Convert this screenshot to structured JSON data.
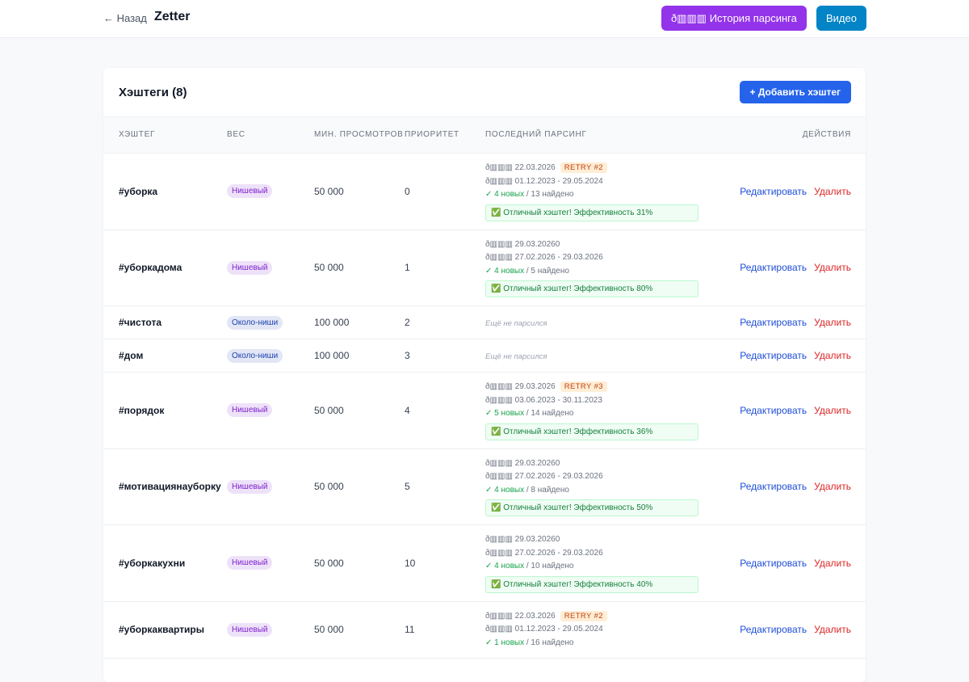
{
  "header": {
    "back": "← Назад",
    "title": "Zetter",
    "history_button": "ð▥▥▥ История парсинга",
    "video_button": "Видео"
  },
  "card": {
    "title": "Хэштеги (8)",
    "add_button": "+ Добавить хэштег"
  },
  "columns": [
    "ХЭШТЕГ",
    "ВЕС",
    "МИН. ПРОСМОТРОВ",
    "ПРИОРИТЕТ",
    "ПОСЛЕДНИЙ ПАРСИНГ",
    "ДЕЙСТВИЯ"
  ],
  "actions": {
    "edit": "Редактировать",
    "delete": "Удалить"
  },
  "rows": [
    {
      "tag": "#уборка",
      "weight": "Нишевый",
      "weight_color": "#7e22ce",
      "min_views": "50 000",
      "priority": "0",
      "parsing": {
        "date": "ð▥▥▥ 22.03.2026",
        "retry": "RETRY #2",
        "range": "ð▥▥▥ 01.12.2023 - 29.05.2024",
        "new": "✓ 4 новых",
        "found": "/ 13 найдено",
        "verdict": "✅ Отличный хэштег! Эффективность 31%"
      }
    },
    {
      "tag": "#уборкадома",
      "weight": "Нишевый",
      "weight_color": "#7e22ce",
      "min_views": "50 000",
      "priority": "1",
      "parsing": {
        "date": "ð▥▥▥ 29.03.20260",
        "range": "ð▥▥▥ 27.02.2026 - 29.03.2026",
        "new": "✓ 4 новых",
        "found": "/ 5 найдено",
        "verdict": "✅ Отличный хэштег! Эффективность 80%"
      }
    },
    {
      "tag": "#чистота",
      "weight": "Около-ниши",
      "weight_color": "#1e40af",
      "min_views": "100 000",
      "priority": "2",
      "parsing": {
        "status": "Ещё не парсился"
      }
    },
    {
      "tag": "#дом",
      "weight": "Около-ниши",
      "weight_color": "#1e40af",
      "min_views": "100 000",
      "priority": "3",
      "parsing": {
        "status": "Ещё не парсился"
      }
    },
    {
      "tag": "#порядок",
      "weight": "Нишевый",
      "weight_color": "#7e22ce",
      "min_views": "50 000",
      "priority": "4",
      "parsing": {
        "date": "ð▥▥▥ 29.03.2026",
        "retry": "RETRY #3",
        "range": "ð▥▥▥ 03.06.2023 - 30.11.2023",
        "new": "✓ 5 новых",
        "found": "/ 14 найдено",
        "verdict": "✅ Отличный хэштег! Эффективность 36%"
      }
    },
    {
      "tag": "#мотивациянауборку",
      "weight": "Нишевый",
      "weight_color": "#7e22ce",
      "min_views": "50 000",
      "priority": "5",
      "parsing": {
        "date": "ð▥▥▥ 29.03.20260",
        "range": "ð▥▥▥ 27.02.2026 - 29.03.2026",
        "new": "✓ 4 новых",
        "found": "/ 8 найдено",
        "verdict": "✅ Отличный хэштег! Эффективность 50%"
      }
    },
    {
      "tag": "#уборкакухни",
      "weight": "Нишевый",
      "weight_color": "#7e22ce",
      "min_views": "50 000",
      "priority": "10",
      "parsing": {
        "date": "ð▥▥▥ 29.03.20260",
        "range": "ð▥▥▥ 27.02.2026 - 29.03.2026",
        "new": "✓ 4 новых",
        "found": "/ 10 найдено",
        "verdict": "✅ Отличный хэштег! Эффективность 40%"
      }
    },
    {
      "tag": "#уборкаквартиры",
      "weight": "Нишевый",
      "weight_color": "#7e22ce",
      "min_views": "50 000",
      "priority": "11",
      "parsing": {
        "date": "ð▥▥▥ 22.03.2026",
        "retry": "RETRY #2",
        "range": "ð▥▥▥ 01.12.2023 - 29.05.2024",
        "new": "✓ 1 новых",
        "found": "/ 16 найдено"
      }
    }
  ]
}
